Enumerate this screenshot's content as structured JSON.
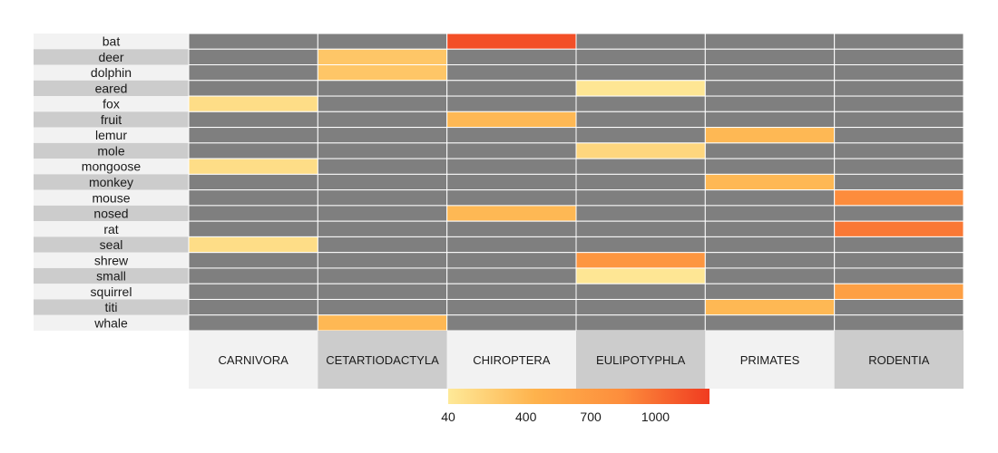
{
  "chart_data": {
    "type": "heatmap",
    "title": "",
    "rows": [
      "bat",
      "deer",
      "dolphin",
      "eared",
      "fox",
      "fruit",
      "lemur",
      "mole",
      "mongoose",
      "monkey",
      "mouse",
      "nosed",
      "rat",
      "seal",
      "shrew",
      "small",
      "squirrel",
      "titi",
      "whale"
    ],
    "columns": [
      "CARNIVORA",
      "CETARTIODACTYLA",
      "CHIROPTERA",
      "EULIPOTYPHLA",
      "PRIMATES",
      "RODENTIA"
    ],
    "cells": [
      {
        "row": "bat",
        "column": "CHIROPTERA",
        "value": 1150
      },
      {
        "row": "deer",
        "column": "CETARTIODACTYLA",
        "value": 300
      },
      {
        "row": "dolphin",
        "column": "CETARTIODACTYLA",
        "value": 300
      },
      {
        "row": "eared",
        "column": "EULIPOTYPHLA",
        "value": 60
      },
      {
        "row": "fox",
        "column": "CARNIVORA",
        "value": 130
      },
      {
        "row": "fruit",
        "column": "CHIROPTERA",
        "value": 400
      },
      {
        "row": "lemur",
        "column": "PRIMATES",
        "value": 400
      },
      {
        "row": "mole",
        "column": "EULIPOTYPHLA",
        "value": 180
      },
      {
        "row": "mongoose",
        "column": "CARNIVORA",
        "value": 130
      },
      {
        "row": "monkey",
        "column": "PRIMATES",
        "value": 400
      },
      {
        "row": "mouse",
        "column": "RODENTIA",
        "value": 850
      },
      {
        "row": "nosed",
        "column": "CHIROPTERA",
        "value": 400
      },
      {
        "row": "rat",
        "column": "RODENTIA",
        "value": 950
      },
      {
        "row": "seal",
        "column": "CARNIVORA",
        "value": 130
      },
      {
        "row": "shrew",
        "column": "EULIPOTYPHLA",
        "value": 750
      },
      {
        "row": "small",
        "column": "EULIPOTYPHLA",
        "value": 60
      },
      {
        "row": "squirrel",
        "column": "RODENTIA",
        "value": 650
      },
      {
        "row": "titi",
        "column": "PRIMATES",
        "value": 400
      },
      {
        "row": "whale",
        "column": "CETARTIODACTYLA",
        "value": 400
      }
    ],
    "missing_color": "#7f7f7f",
    "colorscale": {
      "min": 40,
      "max": 1250,
      "ticks": [
        40,
        400,
        700,
        1000
      ],
      "stops": [
        "#fee998",
        "#feb24c",
        "#fd8d3c",
        "#f03b20"
      ]
    },
    "legend": "bottom"
  }
}
